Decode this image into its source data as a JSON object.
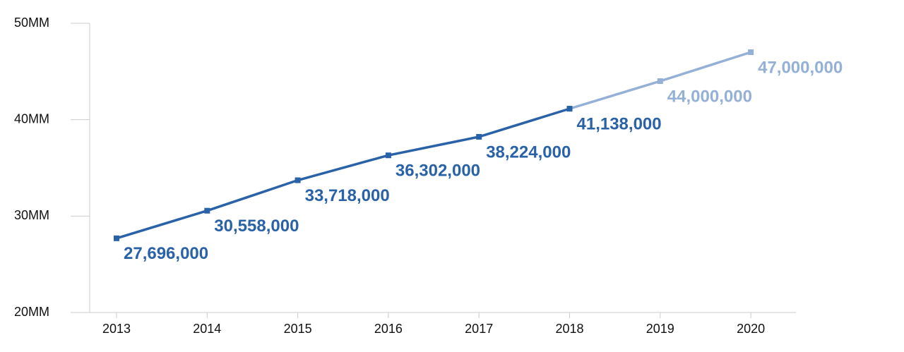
{
  "chart_data": {
    "type": "line",
    "categories": [
      "2013",
      "2014",
      "2015",
      "2016",
      "2017",
      "2018",
      "2019",
      "2020"
    ],
    "series": [
      {
        "color": "#2a62a8",
        "values": [
          27696000,
          30558000,
          33718000,
          36302000,
          38224000,
          41138000,
          null,
          null
        ],
        "value_labels": [
          "27,696,000",
          "30,558,000",
          "33,718,000",
          "36,302,000",
          "38,224,000",
          "41,138,000",
          null,
          null
        ]
      },
      {
        "color": "#94b0d6",
        "values": [
          null,
          null,
          null,
          null,
          null,
          41138000,
          44000000,
          47000000
        ],
        "value_labels": [
          null,
          null,
          null,
          null,
          null,
          null,
          "44,000,000",
          "47,000,000"
        ]
      }
    ],
    "ylim": [
      20000000,
      50000000
    ],
    "yticks": [
      {
        "value": 20000000,
        "label": "20MM"
      },
      {
        "value": 30000000,
        "label": "30MM"
      },
      {
        "value": 40000000,
        "label": "40MM"
      },
      {
        "value": 50000000,
        "label": "50MM"
      }
    ]
  }
}
